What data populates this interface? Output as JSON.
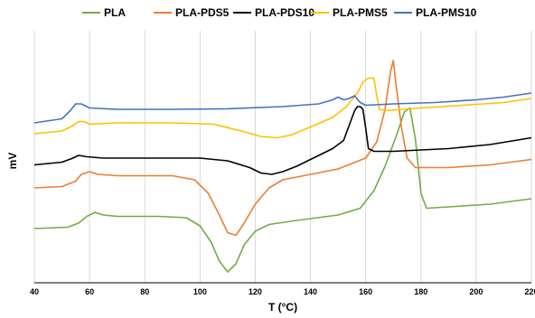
{
  "chart_data": {
    "type": "line",
    "title": "",
    "xlabel": "T (°C)",
    "ylabel": "mV",
    "xlim": [
      40,
      220
    ],
    "xticks": [
      "40",
      "60",
      "80",
      "100",
      "120",
      "140",
      "160",
      "180",
      "200",
      "220"
    ],
    "grid": "vertical",
    "legend_position": "top",
    "series": [
      {
        "name": "PLA",
        "color": "#70ad47",
        "points": [
          [
            40,
            -4.7
          ],
          [
            52,
            -4.65
          ],
          [
            56,
            -4.5
          ],
          [
            59,
            -4.25
          ],
          [
            62,
            -4.1
          ],
          [
            65,
            -4.2
          ],
          [
            70,
            -4.25
          ],
          [
            85,
            -4.25
          ],
          [
            95,
            -4.3
          ],
          [
            100,
            -4.6
          ],
          [
            104,
            -5.2
          ],
          [
            107,
            -5.9
          ],
          [
            110,
            -6.3
          ],
          [
            113,
            -6.0
          ],
          [
            116,
            -5.3
          ],
          [
            120,
            -4.8
          ],
          [
            125,
            -4.55
          ],
          [
            135,
            -4.4
          ],
          [
            150,
            -4.2
          ],
          [
            158,
            -3.95
          ],
          [
            163,
            -3.3
          ],
          [
            167,
            -2.4
          ],
          [
            171,
            -1.3
          ],
          [
            174,
            -0.4
          ],
          [
            176,
            -0.25
          ],
          [
            178,
            -1.4
          ],
          [
            180,
            -3.4
          ],
          [
            182,
            -3.95
          ],
          [
            190,
            -3.9
          ],
          [
            205,
            -3.8
          ],
          [
            220,
            -3.6
          ]
        ]
      },
      {
        "name": "PLA-PDS5",
        "color": "#ed7d31",
        "points": [
          [
            40,
            -3.2
          ],
          [
            50,
            -3.15
          ],
          [
            55,
            -2.95
          ],
          [
            57,
            -2.7
          ],
          [
            60,
            -2.6
          ],
          [
            63,
            -2.7
          ],
          [
            70,
            -2.75
          ],
          [
            90,
            -2.75
          ],
          [
            98,
            -2.9
          ],
          [
            103,
            -3.4
          ],
          [
            107,
            -4.2
          ],
          [
            110,
            -4.85
          ],
          [
            113,
            -4.95
          ],
          [
            116,
            -4.5
          ],
          [
            120,
            -3.8
          ],
          [
            125,
            -3.2
          ],
          [
            130,
            -2.9
          ],
          [
            140,
            -2.7
          ],
          [
            150,
            -2.5
          ],
          [
            160,
            -2.1
          ],
          [
            164,
            -1.5
          ],
          [
            167,
            -0.3
          ],
          [
            169,
            1.1
          ],
          [
            170,
            1.5
          ],
          [
            171,
            0.6
          ],
          [
            173,
            -1.0
          ],
          [
            175,
            -2.1
          ],
          [
            178,
            -2.45
          ],
          [
            190,
            -2.45
          ],
          [
            205,
            -2.35
          ],
          [
            220,
            -2.15
          ]
        ]
      },
      {
        "name": "PLA-PDS10",
        "color": "#000000",
        "points": [
          [
            40,
            -2.35
          ],
          [
            50,
            -2.25
          ],
          [
            54,
            -2.1
          ],
          [
            56,
            -2.0
          ],
          [
            59,
            -2.05
          ],
          [
            65,
            -2.1
          ],
          [
            80,
            -2.1
          ],
          [
            100,
            -2.1
          ],
          [
            110,
            -2.2
          ],
          [
            118,
            -2.45
          ],
          [
            122,
            -2.65
          ],
          [
            126,
            -2.7
          ],
          [
            130,
            -2.6
          ],
          [
            135,
            -2.4
          ],
          [
            142,
            -2.05
          ],
          [
            148,
            -1.75
          ],
          [
            152,
            -1.45
          ],
          [
            154,
            -0.9
          ],
          [
            156,
            -0.35
          ],
          [
            157,
            -0.2
          ],
          [
            158,
            -0.2
          ],
          [
            159,
            -0.3
          ],
          [
            160,
            -1.0
          ],
          [
            161,
            -1.75
          ],
          [
            163,
            -1.85
          ],
          [
            170,
            -1.85
          ],
          [
            190,
            -1.75
          ],
          [
            205,
            -1.6
          ],
          [
            220,
            -1.35
          ]
        ]
      },
      {
        "name": "PLA-PMS5",
        "color": "#ffc000",
        "points": [
          [
            40,
            -1.2
          ],
          [
            50,
            -1.1
          ],
          [
            54,
            -0.9
          ],
          [
            56,
            -0.75
          ],
          [
            58,
            -0.75
          ],
          [
            60,
            -0.85
          ],
          [
            70,
            -0.8
          ],
          [
            90,
            -0.8
          ],
          [
            105,
            -0.85
          ],
          [
            115,
            -1.1
          ],
          [
            122,
            -1.3
          ],
          [
            128,
            -1.35
          ],
          [
            133,
            -1.25
          ],
          [
            140,
            -0.95
          ],
          [
            148,
            -0.6
          ],
          [
            153,
            -0.2
          ],
          [
            157,
            0.3
          ],
          [
            159,
            0.7
          ],
          [
            161,
            0.85
          ],
          [
            163,
            0.85
          ],
          [
            164,
            0.2
          ],
          [
            165,
            -0.3
          ],
          [
            167,
            -0.35
          ],
          [
            180,
            -0.25
          ],
          [
            195,
            -0.15
          ],
          [
            210,
            -0.05
          ],
          [
            220,
            0.1
          ]
        ]
      },
      {
        "name": "PLA-PMS10",
        "color": "#4472c4",
        "points": [
          [
            40,
            -0.8
          ],
          [
            50,
            -0.65
          ],
          [
            53,
            -0.35
          ],
          [
            55,
            -0.1
          ],
          [
            57,
            -0.1
          ],
          [
            60,
            -0.25
          ],
          [
            70,
            -0.3
          ],
          [
            90,
            -0.3
          ],
          [
            110,
            -0.28
          ],
          [
            130,
            -0.2
          ],
          [
            143,
            -0.1
          ],
          [
            148,
            0.05
          ],
          [
            150,
            0.15
          ],
          [
            152,
            0.05
          ],
          [
            154,
            0.1
          ],
          [
            156,
            0.2
          ],
          [
            158,
            -0.05
          ],
          [
            160,
            -0.15
          ],
          [
            170,
            -0.1
          ],
          [
            185,
            -0.05
          ],
          [
            200,
            0.05
          ],
          [
            210,
            0.15
          ],
          [
            220,
            0.3
          ]
        ]
      }
    ]
  }
}
